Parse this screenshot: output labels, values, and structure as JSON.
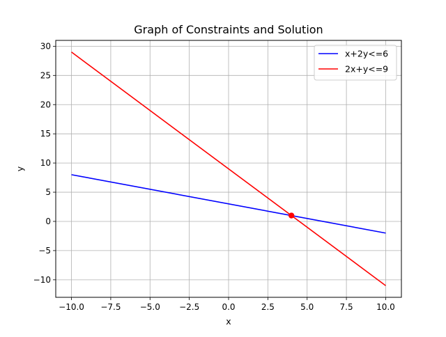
{
  "chart_data": {
    "type": "line",
    "title": "Graph of Constraints and Solution",
    "xlabel": "x",
    "ylabel": "y",
    "xlim": [
      -11,
      11
    ],
    "ylim": [
      -13,
      31
    ],
    "x_ticks": [
      -10,
      -7.5,
      -5,
      -2.5,
      0,
      2.5,
      5,
      7.5,
      10
    ],
    "x_tick_labels": [
      "−10.0",
      "−7.5",
      "−5.0",
      "−2.5",
      "0.0",
      "2.5",
      "5.0",
      "7.5",
      "10.0"
    ],
    "y_ticks": [
      -10,
      -5,
      0,
      5,
      10,
      15,
      20,
      25,
      30
    ],
    "y_tick_labels": [
      "−10",
      "−5",
      "0",
      "5",
      "10",
      "15",
      "20",
      "25",
      "30"
    ],
    "grid": true,
    "legend_position": "top-right",
    "series": [
      {
        "name": "x+2y<=6",
        "color": "#0000ff",
        "x": [
          -10,
          10
        ],
        "y": [
          8,
          -2
        ]
      },
      {
        "name": "2x+y<=9",
        "color": "#ff0000",
        "x": [
          -10,
          10
        ],
        "y": [
          29,
          -11
        ]
      }
    ],
    "solution_point": {
      "x": 4,
      "y": 1,
      "color": "#ff0000"
    }
  }
}
